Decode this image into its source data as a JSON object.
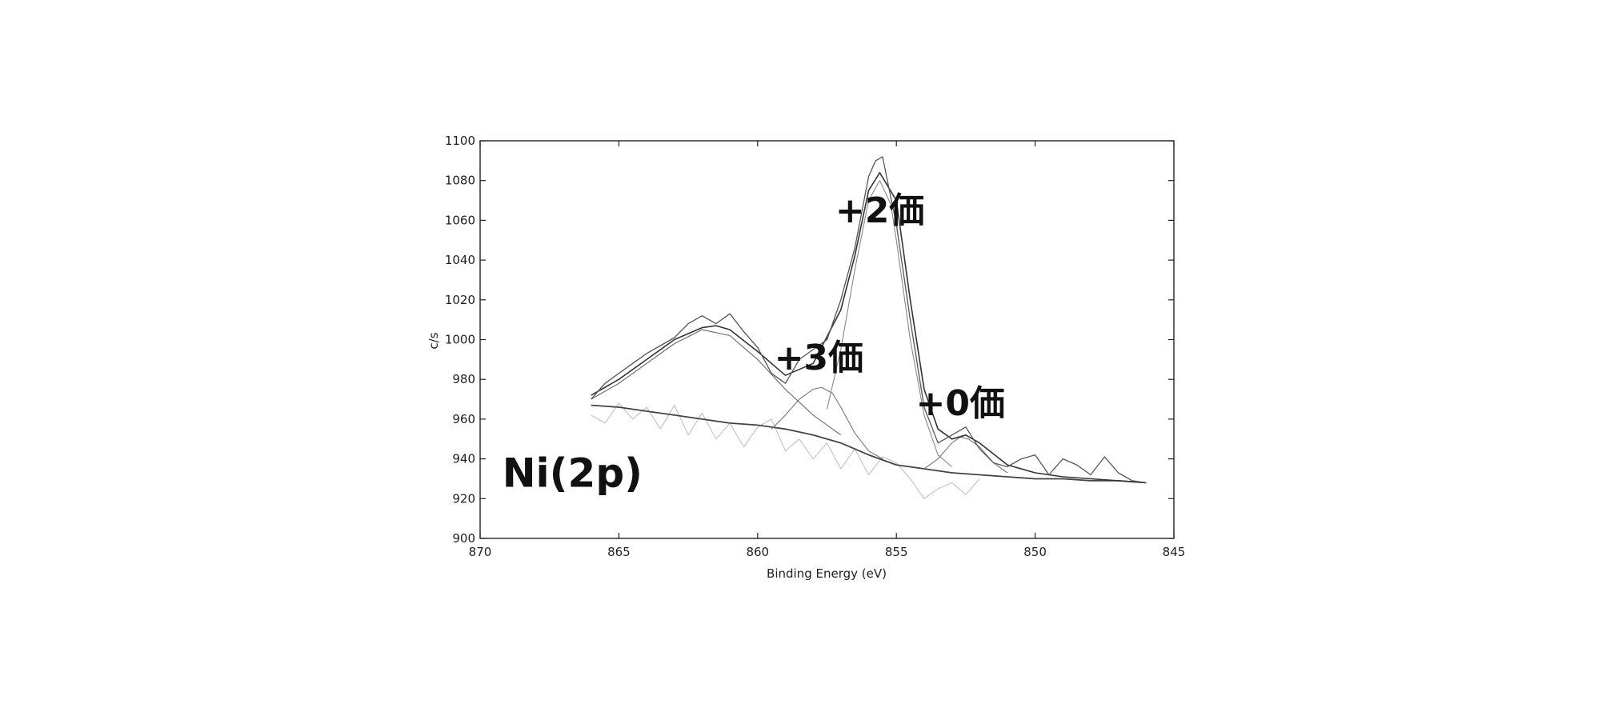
{
  "chart_data": {
    "type": "line",
    "title": "",
    "xlabel": "Binding Energy (eV)",
    "ylabel": "c/s",
    "xlim": [
      870,
      845
    ],
    "ylim": [
      900,
      1100
    ],
    "x_ticks": [
      870,
      865,
      860,
      855,
      850,
      845
    ],
    "y_ticks": [
      900,
      920,
      940,
      960,
      980,
      1000,
      1020,
      1040,
      1060,
      1080,
      1100
    ],
    "grid": false,
    "legend": "none",
    "annotations": [
      {
        "text": "+2価",
        "x": 857.2,
        "y": 1059
      },
      {
        "text": "+3価",
        "x": 859.4,
        "y": 985
      },
      {
        "text": "+0価",
        "x": 854.3,
        "y": 962
      },
      {
        "text": "Ni(2p)",
        "x": 869.2,
        "y": 926
      }
    ],
    "series": [
      {
        "role": "measured",
        "color": "#555555",
        "x": [
          866,
          865.5,
          865,
          864.5,
          864,
          863.5,
          863,
          862.5,
          862,
          861.5,
          861,
          860.5,
          860,
          859.5,
          859,
          858.5,
          858,
          857.5,
          857,
          856.5,
          856,
          855.75,
          855.5,
          855.25,
          855,
          854.5,
          854,
          853.5,
          853,
          852.5,
          852,
          851.5,
          851,
          850.5,
          850,
          849.5,
          849,
          848.5,
          848,
          847.5,
          847,
          846.5,
          846
        ],
        "y": [
          970,
          978,
          983,
          988,
          993,
          997,
          1001,
          1008,
          1012,
          1008,
          1013,
          1004,
          996,
          983,
          978,
          990,
          995,
          1000,
          1020,
          1046,
          1082,
          1090,
          1092,
          1075,
          1058,
          1010,
          966,
          948,
          952,
          956,
          945,
          938,
          936,
          940,
          942,
          932,
          940,
          937,
          932,
          941,
          933,
          929,
          928
        ]
      },
      {
        "role": "envelope-fit",
        "color": "#333333",
        "x": [
          866,
          865,
          864,
          863,
          862,
          861.5,
          861,
          860,
          859,
          858,
          857,
          856.5,
          856,
          855.6,
          855,
          854.5,
          854,
          853.5,
          853,
          852.5,
          852,
          851,
          850,
          849,
          848,
          847,
          846
        ],
        "y": [
          972,
          980,
          990,
          1000,
          1006,
          1007,
          1005,
          994,
          982,
          988,
          1015,
          1042,
          1075,
          1084,
          1070,
          1020,
          975,
          955,
          950,
          952,
          948,
          937,
          933,
          931,
          930,
          929,
          928
        ]
      },
      {
        "role": "background",
        "color": "#444444",
        "x": [
          866,
          865,
          864,
          863,
          862,
          861,
          860,
          859,
          858,
          857,
          856,
          855,
          854,
          853,
          852,
          851,
          850,
          849,
          848,
          847,
          846
        ],
        "y": [
          967,
          966,
          964,
          962,
          960,
          958,
          957,
          955,
          952,
          948,
          942,
          937,
          935,
          933,
          932,
          931,
          930,
          930,
          929,
          929,
          928
        ]
      },
      {
        "role": "peak-satellite",
        "color": "#666666",
        "x": [
          866,
          865,
          864,
          863,
          862,
          861,
          860,
          859,
          858,
          857
        ],
        "y": [
          970,
          978,
          988,
          998,
          1005,
          1002,
          990,
          975,
          962,
          952
        ]
      },
      {
        "role": "peak-+3",
        "color": "#777777",
        "x": [
          859.5,
          859,
          858.5,
          858,
          857.7,
          857.3,
          857,
          856.5,
          856,
          855.5
        ],
        "y": [
          955,
          962,
          970,
          975,
          976,
          973,
          966,
          953,
          944,
          940
        ]
      },
      {
        "role": "peak-+2",
        "color": "#888888",
        "x": [
          857.5,
          857,
          856.5,
          856,
          855.6,
          855.2,
          855,
          854.5,
          854,
          853.5,
          853
        ],
        "y": [
          965,
          995,
          1035,
          1070,
          1080,
          1068,
          1050,
          1000,
          962,
          942,
          936
        ]
      },
      {
        "role": "peak-+0",
        "color": "#777777",
        "x": [
          854,
          853.5,
          853,
          852.7,
          852.4,
          852,
          851.5,
          851
        ],
        "y": [
          935,
          940,
          948,
          951,
          950,
          946,
          938,
          933
        ]
      },
      {
        "role": "residual",
        "color": "#bbbbbb",
        "x": [
          866,
          865.5,
          865,
          864.5,
          864,
          863.5,
          863,
          862.5,
          862,
          861.5,
          861,
          860.5,
          860,
          859.5,
          859,
          858.5,
          858,
          857.5,
          857,
          856.5,
          856,
          855.5,
          855,
          854.5,
          854,
          853.5,
          853,
          852.5,
          852
        ],
        "y": [
          962,
          958,
          968,
          960,
          966,
          955,
          967,
          952,
          963,
          950,
          958,
          946,
          956,
          960,
          944,
          950,
          940,
          948,
          935,
          945,
          932,
          941,
          938,
          930,
          920,
          925,
          928,
          922,
          930
        ]
      }
    ]
  }
}
